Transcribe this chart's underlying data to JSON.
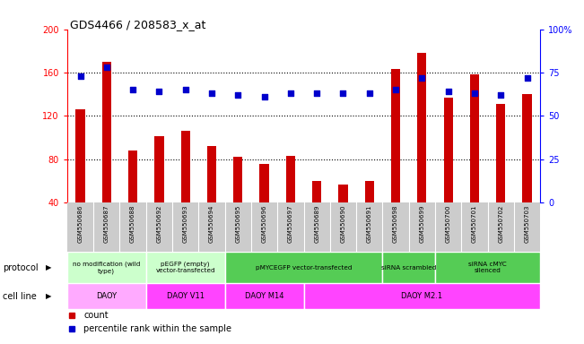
{
  "title": "GDS4466 / 208583_x_at",
  "samples": [
    "GSM550686",
    "GSM550687",
    "GSM550688",
    "GSM550692",
    "GSM550693",
    "GSM550694",
    "GSM550695",
    "GSM550696",
    "GSM550697",
    "GSM550689",
    "GSM550690",
    "GSM550691",
    "GSM550698",
    "GSM550699",
    "GSM550700",
    "GSM550701",
    "GSM550702",
    "GSM550703"
  ],
  "counts": [
    126,
    170,
    88,
    101,
    106,
    92,
    82,
    76,
    83,
    60,
    57,
    60,
    163,
    178,
    137,
    158,
    131,
    140
  ],
  "percentile": [
    73,
    78,
    65,
    64,
    65,
    63,
    62,
    61,
    63,
    63,
    63,
    63,
    65,
    72,
    64,
    63,
    62,
    72
  ],
  "ylim_left": [
    40,
    200
  ],
  "ylim_right": [
    0,
    100
  ],
  "bar_color": "#cc0000",
  "dot_color": "#0000cc",
  "protocols": [
    {
      "label": "no modification (wild\ntype)",
      "start": 0,
      "end": 3,
      "color": "#ccffcc"
    },
    {
      "label": "pEGFP (empty)\nvector-transfected",
      "start": 3,
      "end": 6,
      "color": "#ccffcc"
    },
    {
      "label": "pMYCEGFP vector-transfected",
      "start": 6,
      "end": 12,
      "color": "#55cc55"
    },
    {
      "label": "siRNA scrambled",
      "start": 12,
      "end": 14,
      "color": "#55cc55"
    },
    {
      "label": "siRNA cMYC\nsilenced",
      "start": 14,
      "end": 18,
      "color": "#55cc55"
    }
  ],
  "cell_lines": [
    {
      "label": "DAOY",
      "start": 0,
      "end": 3,
      "color": "#ff99ee"
    },
    {
      "label": "DAOY V11",
      "start": 3,
      "end": 6,
      "color": "#ff44ee"
    },
    {
      "label": "DAOY M14",
      "start": 6,
      "end": 9,
      "color": "#ff44ee"
    },
    {
      "label": "DAOY M2.1",
      "start": 9,
      "end": 18,
      "color": "#ff44ee"
    }
  ],
  "legend_count_label": "count",
  "legend_pct_label": "percentile rank within the sample",
  "protocol_label": "protocol",
  "cell_line_label": "cell line",
  "grid_values": [
    80,
    120,
    160
  ],
  "yticks_left": [
    40,
    80,
    120,
    160,
    200
  ],
  "yticks_right": [
    0,
    25,
    50,
    75,
    100
  ],
  "xlabel_bg_color": "#cccccc",
  "spine_color": "#888888"
}
